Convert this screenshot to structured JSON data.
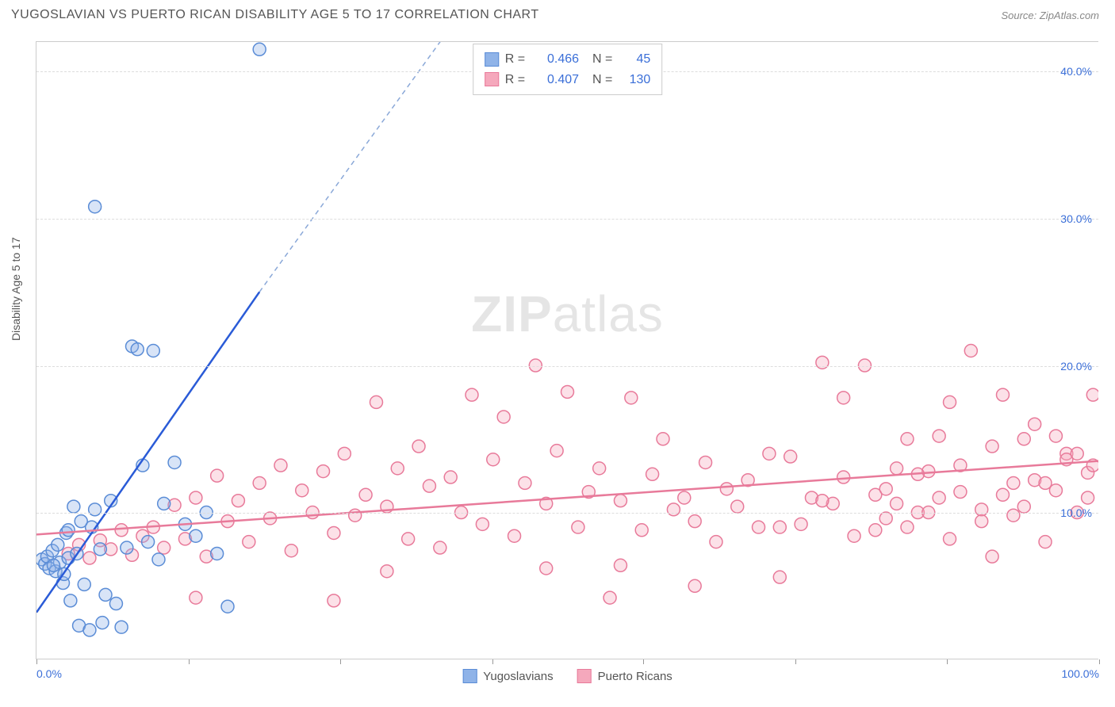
{
  "header": {
    "title": "YUGOSLAVIAN VS PUERTO RICAN DISABILITY AGE 5 TO 17 CORRELATION CHART",
    "source": "Source: ZipAtlas.com"
  },
  "ylabel": "Disability Age 5 to 17",
  "watermark": {
    "bold": "ZIP",
    "rest": "atlas"
  },
  "chart": {
    "type": "scatter",
    "xlim": [
      0,
      100
    ],
    "ylim": [
      0,
      42
    ],
    "ygrid": [
      10,
      20,
      30,
      40
    ],
    "ytick_labels": [
      "10.0%",
      "20.0%",
      "30.0%",
      "40.0%"
    ],
    "xticks": [
      0,
      14.3,
      28.6,
      42.9,
      57.1,
      71.4,
      85.7,
      100
    ],
    "x_tick_labels": {
      "first": "0.0%",
      "last": "100.0%"
    },
    "background_color": "#ffffff",
    "grid_color": "#dddddd",
    "axis_color": "#cccccc",
    "marker_radius": 8
  },
  "series": {
    "yugo": {
      "label": "Yugoslavians",
      "color_fill": "#8fb3e8",
      "color_stroke": "#5a8cd6",
      "R": "0.466",
      "N": "45",
      "trend": {
        "x1": 0,
        "y1": 3.2,
        "x2": 21,
        "y2": 25,
        "dash_x2": 40,
        "dash_y2": 44
      },
      "points": [
        [
          0.5,
          6.8
        ],
        [
          0.8,
          6.5
        ],
        [
          1.0,
          7.0
        ],
        [
          1.2,
          6.2
        ],
        [
          1.5,
          7.4
        ],
        [
          1.8,
          6.0
        ],
        [
          2.0,
          7.8
        ],
        [
          2.2,
          6.6
        ],
        [
          2.5,
          5.2
        ],
        [
          2.8,
          8.6
        ],
        [
          3.0,
          6.9
        ],
        [
          3.2,
          4.0
        ],
        [
          3.5,
          10.4
        ],
        [
          3.8,
          7.2
        ],
        [
          4.0,
          2.3
        ],
        [
          4.5,
          5.1
        ],
        [
          5.0,
          2.0
        ],
        [
          5.2,
          9.0
        ],
        [
          5.5,
          10.2
        ],
        [
          6.0,
          7.5
        ],
        [
          6.2,
          2.5
        ],
        [
          6.5,
          4.4
        ],
        [
          7.0,
          10.8
        ],
        [
          7.5,
          3.8
        ],
        [
          8.0,
          2.2
        ],
        [
          8.5,
          7.6
        ],
        [
          9.0,
          21.3
        ],
        [
          9.5,
          21.1
        ],
        [
          10.0,
          13.2
        ],
        [
          10.5,
          8.0
        ],
        [
          11.0,
          21.0
        ],
        [
          11.5,
          6.8
        ],
        [
          12.0,
          10.6
        ],
        [
          13.0,
          13.4
        ],
        [
          14.0,
          9.2
        ],
        [
          15.0,
          8.4
        ],
        [
          16.0,
          10.0
        ],
        [
          17.0,
          7.2
        ],
        [
          18.0,
          3.6
        ],
        [
          5.5,
          30.8
        ],
        [
          21.0,
          41.5
        ],
        [
          3.0,
          8.8
        ],
        [
          4.2,
          9.4
        ],
        [
          2.6,
          5.8
        ],
        [
          1.6,
          6.4
        ]
      ]
    },
    "pr": {
      "label": "Puerto Ricans",
      "color_fill": "#f5a8bc",
      "color_stroke": "#e87a9a",
      "R": "0.407",
      "N": "130",
      "trend": {
        "x1": 0,
        "y1": 8.5,
        "x2": 100,
        "y2": 13.5
      },
      "points": [
        [
          3,
          7.2
        ],
        [
          4,
          7.8
        ],
        [
          5,
          6.9
        ],
        [
          6,
          8.1
        ],
        [
          7,
          7.5
        ],
        [
          8,
          8.8
        ],
        [
          9,
          7.1
        ],
        [
          10,
          8.4
        ],
        [
          11,
          9.0
        ],
        [
          12,
          7.6
        ],
        [
          13,
          10.5
        ],
        [
          14,
          8.2
        ],
        [
          15,
          11.0
        ],
        [
          16,
          7.0
        ],
        [
          17,
          12.5
        ],
        [
          18,
          9.4
        ],
        [
          19,
          10.8
        ],
        [
          20,
          8.0
        ],
        [
          21,
          12.0
        ],
        [
          22,
          9.6
        ],
        [
          23,
          13.2
        ],
        [
          24,
          7.4
        ],
        [
          25,
          11.5
        ],
        [
          26,
          10.0
        ],
        [
          27,
          12.8
        ],
        [
          28,
          8.6
        ],
        [
          29,
          14.0
        ],
        [
          30,
          9.8
        ],
        [
          31,
          11.2
        ],
        [
          32,
          17.5
        ],
        [
          33,
          10.4
        ],
        [
          34,
          13.0
        ],
        [
          35,
          8.2
        ],
        [
          36,
          14.5
        ],
        [
          37,
          11.8
        ],
        [
          38,
          7.6
        ],
        [
          39,
          12.4
        ],
        [
          40,
          10.0
        ],
        [
          41,
          18.0
        ],
        [
          42,
          9.2
        ],
        [
          43,
          13.6
        ],
        [
          44,
          16.5
        ],
        [
          45,
          8.4
        ],
        [
          46,
          12.0
        ],
        [
          47,
          20.0
        ],
        [
          48,
          10.6
        ],
        [
          49,
          14.2
        ],
        [
          50,
          18.2
        ],
        [
          51,
          9.0
        ],
        [
          52,
          11.4
        ],
        [
          53,
          13.0
        ],
        [
          54,
          4.2
        ],
        [
          55,
          10.8
        ],
        [
          56,
          17.8
        ],
        [
          57,
          8.8
        ],
        [
          58,
          12.6
        ],
        [
          59,
          15.0
        ],
        [
          60,
          10.2
        ],
        [
          61,
          11.0
        ],
        [
          62,
          9.4
        ],
        [
          63,
          13.4
        ],
        [
          64,
          8.0
        ],
        [
          65,
          11.6
        ],
        [
          66,
          10.4
        ],
        [
          67,
          12.2
        ],
        [
          68,
          9.0
        ],
        [
          69,
          14.0
        ],
        [
          70,
          5.6
        ],
        [
          71,
          13.8
        ],
        [
          72,
          9.2
        ],
        [
          73,
          11.0
        ],
        [
          74,
          20.2
        ],
        [
          75,
          10.6
        ],
        [
          76,
          12.4
        ],
        [
          77,
          8.4
        ],
        [
          78,
          20.0
        ],
        [
          79,
          11.2
        ],
        [
          80,
          9.6
        ],
        [
          81,
          13.0
        ],
        [
          82,
          15.0
        ],
        [
          83,
          10.0
        ],
        [
          84,
          12.8
        ],
        [
          85,
          15.2
        ],
        [
          86,
          8.2
        ],
        [
          87,
          11.4
        ],
        [
          88,
          21.0
        ],
        [
          89,
          10.2
        ],
        [
          90,
          7.0
        ],
        [
          91,
          18.0
        ],
        [
          92,
          9.8
        ],
        [
          93,
          15.0
        ],
        [
          94,
          12.2
        ],
        [
          95,
          8.0
        ],
        [
          96,
          11.5
        ],
        [
          97,
          14.0
        ],
        [
          98,
          10.0
        ],
        [
          99,
          12.7
        ],
        [
          99.5,
          18.0
        ],
        [
          28,
          4.0
        ],
        [
          15,
          4.2
        ],
        [
          62,
          5.0
        ],
        [
          48,
          6.2
        ],
        [
          33,
          6.0
        ],
        [
          55,
          6.4
        ],
        [
          70,
          9.0
        ],
        [
          76,
          17.8
        ],
        [
          82,
          9.0
        ],
        [
          86,
          17.5
        ],
        [
          90,
          14.5
        ],
        [
          94,
          16.0
        ],
        [
          97,
          13.6
        ],
        [
          92,
          12.0
        ],
        [
          84,
          10.0
        ],
        [
          80,
          11.6
        ],
        [
          74,
          10.8
        ],
        [
          96,
          15.2
        ],
        [
          98,
          14.0
        ],
        [
          99,
          11.0
        ],
        [
          99.5,
          13.2
        ],
        [
          95,
          12.0
        ],
        [
          93,
          10.4
        ],
        [
          91,
          11.2
        ],
        [
          89,
          9.4
        ],
        [
          87,
          13.2
        ],
        [
          85,
          11.0
        ],
        [
          83,
          12.6
        ],
        [
          81,
          10.6
        ],
        [
          79,
          8.8
        ]
      ]
    }
  },
  "legend": {
    "items": [
      {
        "key": "yugo",
        "label": "Yugoslavians"
      },
      {
        "key": "pr",
        "label": "Puerto Ricans"
      }
    ]
  }
}
